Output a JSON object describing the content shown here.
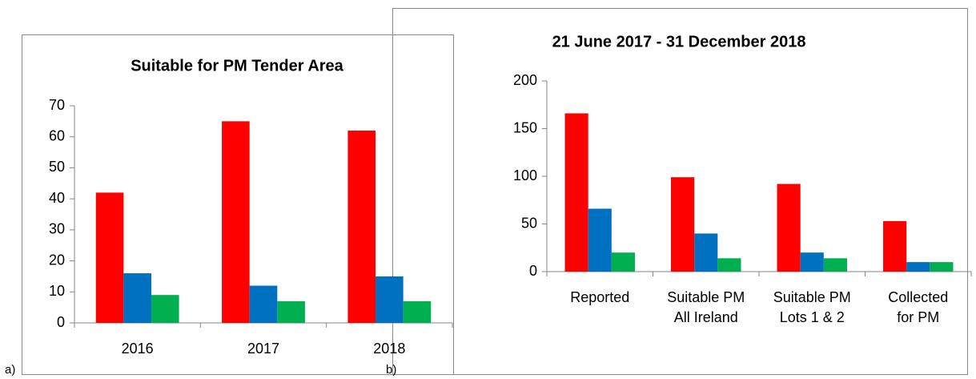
{
  "panel_labels": [
    "a)",
    "b)"
  ],
  "chart_data": [
    {
      "type": "bar",
      "title": "Suitable for PM Tender Area",
      "categories": [
        "2016",
        "2017",
        "2018"
      ],
      "series": [
        {
          "color": "#ff0000",
          "values": [
            42,
            65,
            62
          ]
        },
        {
          "color": "#0070c0",
          "values": [
            16,
            12,
            15
          ]
        },
        {
          "color": "#00b050",
          "values": [
            9,
            7,
            7
          ]
        }
      ],
      "ylim": [
        0,
        70
      ],
      "yticks": [
        0,
        10,
        20,
        30,
        40,
        50,
        60,
        70
      ],
      "grid": false
    },
    {
      "type": "bar",
      "title": "21 June 2017 - 31 December 2018",
      "categories": [
        "Reported",
        "Suitable PM All Ireland",
        "Suitable PM Lots 1 & 2",
        "Collected for PM"
      ],
      "series": [
        {
          "color": "#ff0000",
          "values": [
            166,
            99,
            92,
            53
          ]
        },
        {
          "color": "#0070c0",
          "values": [
            66,
            40,
            20,
            10
          ]
        },
        {
          "color": "#00b050",
          "values": [
            20,
            14,
            14,
            10
          ]
        }
      ],
      "ylim": [
        0,
        200
      ],
      "yticks": [
        0,
        50,
        100,
        150,
        200
      ],
      "grid": false
    }
  ]
}
